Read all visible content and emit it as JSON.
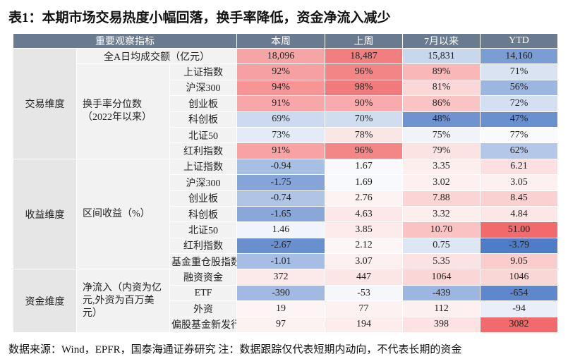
{
  "title": "表1：本期市场交易热度小幅回落，换手率降低，资金净流入减少",
  "header": [
    "重要观察指标",
    "本周",
    "上周",
    "7月以来",
    "YTD"
  ],
  "groups": [
    {
      "label": "交易维度",
      "subgroups": [
        {
          "rows": [
            {
              "label": "全A日均成交额（亿元）",
              "cells": [
                "18,096",
                "18,487",
                "15,831",
                "14,160"
              ],
              "colors": [
                "#f6a5a6",
                "#f17f80",
                "#c9d7ec",
                "#7b9dd4"
              ]
            }
          ]
        },
        {
          "label": "换手率分位数（2022年以来）",
          "rows": [
            {
              "label": "上证指数",
              "cells": [
                "92%",
                "96%",
                "89%",
                "71%"
              ],
              "colors": [
                "#f7a0a1",
                "#f38586",
                "#f9b7b8",
                "#d9e3f2"
              ]
            },
            {
              "label": "沪深300",
              "cells": [
                "94%",
                "98%",
                "81%",
                "56%"
              ],
              "colors": [
                "#f69496",
                "#f17b7c",
                "#fbd8d8",
                "#9cb6e0"
              ]
            },
            {
              "label": "创业板",
              "cells": [
                "91%",
                "90%",
                "86%",
                "72%"
              ],
              "colors": [
                "#f8a7a8",
                "#f8abac",
                "#fac3c4",
                "#d4e0f1"
              ]
            },
            {
              "label": "科创板",
              "cells": [
                "69%",
                "70%",
                "48%",
                "47%"
              ],
              "colors": [
                "#ccd9ee",
                "#d0dcef",
                "#6e93d0",
                "#6a90cf"
              ]
            },
            {
              "label": "北证50",
              "cells": [
                "73%",
                "78%",
                "75%",
                "77%"
              ],
              "colors": [
                "#e4ebf6",
                "#fbe6e6",
                "#f0f3f9",
                "#f9fafc"
              ]
            },
            {
              "label": "红利指数",
              "cells": [
                "91%",
                "96%",
                "79%",
                "62%"
              ],
              "colors": [
                "#f8a2a3",
                "#f38788",
                "#fce3e3",
                "#b4c7e8"
              ]
            }
          ]
        }
      ]
    },
    {
      "label": "收益维度",
      "subgroups": [
        {
          "label": "区间收益（%）",
          "rows": [
            {
              "label": "上证指数",
              "cells": [
                "-0.94",
                "1.67",
                "3.35",
                "6.21"
              ],
              "colors": [
                "#a8bfe4",
                "#f8f9fc",
                "#fdeeee",
                "#fcdfe0"
              ]
            },
            {
              "label": "沪深300",
              "cells": [
                "-1.75",
                "1.69",
                "3.02",
                "3.05"
              ],
              "colors": [
                "#86a4d8",
                "#f8f9fc",
                "#fdf0f0",
                "#fdf0f0"
              ]
            },
            {
              "label": "创业板",
              "cells": [
                "-0.74",
                "2.76",
                "7.88",
                "8.45"
              ],
              "colors": [
                "#b0c5e6",
                "#fdf3f3",
                "#fbd5d5",
                "#fbd0d0"
              ]
            },
            {
              "label": "科创板",
              "cells": [
                "-1.65",
                "4.63",
                "3.32",
                "4.84"
              ],
              "colors": [
                "#89a7d9",
                "#fce8e8",
                "#fdeeee",
                "#fde6e6"
              ]
            },
            {
              "label": "北证50",
              "cells": [
                "1.46",
                "3.85",
                "10.70",
                "51.00"
              ],
              "colors": [
                "#f1f4fa",
                "#fdebeb",
                "#fac2c3",
                "#f26a6b"
              ]
            },
            {
              "label": "红利指数",
              "cells": [
                "-2.67",
                "2.12",
                "0.75",
                "-3.79"
              ],
              "colors": [
                "#6a8fcf",
                "#fdf6f6",
                "#dde6f4",
                "#4f7cc7"
              ]
            },
            {
              "label": "基金重仓股指数",
              "cells": [
                "-1.01",
                "3.07",
                "5.35",
                "9.05"
              ],
              "colors": [
                "#a6bde4",
                "#fdf0f0",
                "#fce3e3",
                "#fbcccc"
              ]
            }
          ]
        }
      ]
    },
    {
      "label": "资金维度",
      "subgroups": [
        {
          "label": "净流入（内资为亿元,外资为百万美元）",
          "rows": [
            {
              "label": "融资资金",
              "cells": [
                "372",
                "447",
                "1064",
                "1046"
              ],
              "colors": [
                "#fce9e9",
                "#fce5e5",
                "#fad6d6",
                "#fad7d7"
              ]
            },
            {
              "label": "ETF",
              "cells": [
                "-390",
                "-53",
                "-439",
                "-654"
              ],
              "colors": [
                "#a2bae3",
                "#f5f7fb",
                "#9cb6e1",
                "#5f87cc"
              ]
            },
            {
              "label": "外资",
              "cells": [
                "19",
                "77",
                "112",
                "-94"
              ],
              "colors": [
                "#fdf5f5",
                "#fdf2f2",
                "#fdf0f0",
                "#e9eef8"
              ]
            },
            {
              "label": "偏股基金新发行",
              "cells": [
                "97",
                "194",
                "398",
                "3082"
              ],
              "colors": [
                "#fdf2f2",
                "#fcecec",
                "#fce2e2",
                "#f26a6b"
              ]
            }
          ]
        }
      ]
    }
  ],
  "footer": "数据来源：Wind，EPFR，国泰海通证券研究 注：数据跟踪仅代表短期内动向，不代表长期的资金"
}
